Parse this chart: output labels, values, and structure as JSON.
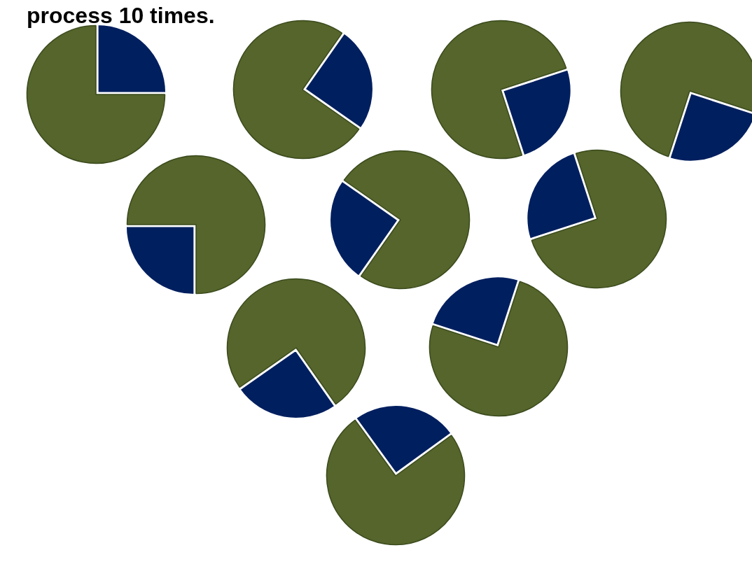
{
  "chart_data": [
    {
      "type": "pie",
      "title": "process 10 times.",
      "categories": [
        null,
        null
      ],
      "values": [
        25,
        75
      ],
      "colors": [
        "#001f5f",
        "#55652b"
      ]
    },
    {
      "type": "pie",
      "categories": [
        null,
        null
      ],
      "values": [
        25,
        75
      ],
      "colors": [
        "#001f5f",
        "#55652b"
      ]
    },
    {
      "type": "pie",
      "categories": [
        null,
        null
      ],
      "values": [
        25,
        75
      ],
      "colors": [
        "#001f5f",
        "#55652b"
      ]
    },
    {
      "type": "pie",
      "categories": [
        null,
        null
      ],
      "values": [
        25,
        75
      ],
      "colors": [
        "#001f5f",
        "#55652b"
      ]
    },
    {
      "type": "pie",
      "categories": [
        null,
        null
      ],
      "values": [
        25,
        75
      ],
      "colors": [
        "#001f5f",
        "#55652b"
      ]
    },
    {
      "type": "pie",
      "categories": [
        null,
        null
      ],
      "values": [
        25,
        75
      ],
      "colors": [
        "#001f5f",
        "#55652b"
      ]
    },
    {
      "type": "pie",
      "categories": [
        null,
        null
      ],
      "values": [
        25,
        75
      ],
      "colors": [
        "#001f5f",
        "#55652b"
      ]
    },
    {
      "type": "pie",
      "categories": [
        null,
        null
      ],
      "values": [
        25,
        75
      ],
      "colors": [
        "#001f5f",
        "#55652b"
      ]
    },
    {
      "type": "pie",
      "categories": [
        null,
        null
      ],
      "values": [
        25,
        75
      ],
      "colors": [
        "#001f5f",
        "#55652b"
      ]
    },
    {
      "type": "pie",
      "categories": [
        null,
        null
      ],
      "values": [
        25,
        75
      ],
      "colors": [
        "#001f5f",
        "#55652b"
      ]
    }
  ]
}
